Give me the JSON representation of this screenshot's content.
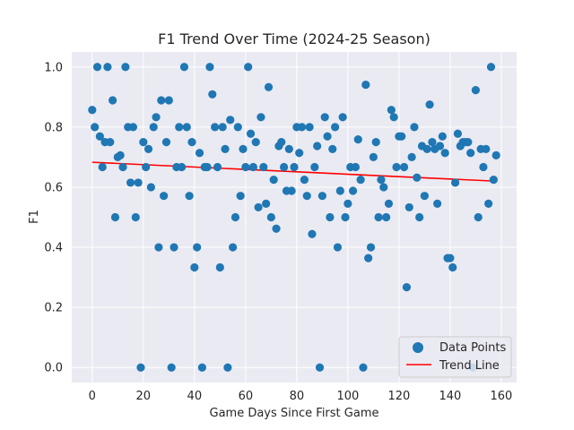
{
  "chart_data": {
    "type": "scatter",
    "title": "F1 Trend Over Time (2024-25 Season)",
    "xlabel": "Game Days Since First Game",
    "ylabel": "F1",
    "xlim": [
      -8,
      166
    ],
    "ylim": [
      -0.05,
      1.05
    ],
    "xticks": [
      0,
      20,
      40,
      60,
      80,
      100,
      120,
      140,
      160
    ],
    "yticks": [
      0.0,
      0.2,
      0.4,
      0.6,
      0.8,
      1.0
    ],
    "ytick_labels": [
      "0.0",
      "0.2",
      "0.4",
      "0.6",
      "0.8",
      "1.0"
    ],
    "grid": true,
    "legend_position": "lower-right",
    "colors": {
      "background": "#eaeaf2",
      "grid": "#ffffff",
      "points": "#1f77b4",
      "trend": "#ff0000"
    },
    "series": [
      {
        "name": "Data Points",
        "kind": "scatter",
        "points": [
          [
            0,
            0.857
          ],
          [
            1,
            0.8
          ],
          [
            2,
            1.0
          ],
          [
            3,
            0.769
          ],
          [
            4,
            0.667
          ],
          [
            5,
            0.75
          ],
          [
            6,
            1.0
          ],
          [
            7,
            0.75
          ],
          [
            8,
            0.889
          ],
          [
            9,
            0.5
          ],
          [
            10,
            0.7
          ],
          [
            11,
            0.706
          ],
          [
            12,
            0.667
          ],
          [
            13,
            1.0
          ],
          [
            14,
            0.8
          ],
          [
            15,
            0.615
          ],
          [
            16,
            0.8
          ],
          [
            17,
            0.5
          ],
          [
            18,
            0.615
          ],
          [
            19,
            0.0
          ],
          [
            20,
            0.75
          ],
          [
            21,
            0.667
          ],
          [
            22,
            0.727
          ],
          [
            23,
            0.6
          ],
          [
            24,
            0.8
          ],
          [
            25,
            0.833
          ],
          [
            26,
            0.4
          ],
          [
            27,
            0.889
          ],
          [
            28,
            0.571
          ],
          [
            29,
            0.75
          ],
          [
            30,
            0.889
          ],
          [
            31,
            0.0
          ],
          [
            32,
            0.4
          ],
          [
            33,
            0.667
          ],
          [
            34,
            0.8
          ],
          [
            35,
            0.667
          ],
          [
            36,
            1.0
          ],
          [
            37,
            0.8
          ],
          [
            38,
            0.571
          ],
          [
            39,
            0.75
          ],
          [
            40,
            0.333
          ],
          [
            41,
            0.4
          ],
          [
            42,
            0.714
          ],
          [
            43,
            0.0
          ],
          [
            44,
            0.667
          ],
          [
            45,
            0.667
          ],
          [
            46,
            1.0
          ],
          [
            47,
            0.909
          ],
          [
            48,
            0.8
          ],
          [
            49,
            0.667
          ],
          [
            50,
            0.333
          ],
          [
            51,
            0.8
          ],
          [
            52,
            0.727
          ],
          [
            53,
            0.0
          ],
          [
            54,
            0.824
          ],
          [
            55,
            0.4
          ],
          [
            56,
            0.5
          ],
          [
            57,
            0.8
          ],
          [
            58,
            0.571
          ],
          [
            59,
            0.727
          ],
          [
            60,
            0.667
          ],
          [
            61,
            1.0
          ],
          [
            62,
            0.778
          ],
          [
            63,
            0.667
          ],
          [
            64,
            0.75
          ],
          [
            65,
            0.533
          ],
          [
            66,
            0.833
          ],
          [
            67,
            0.667
          ],
          [
            68,
            0.545
          ],
          [
            69,
            0.933
          ],
          [
            70,
            0.5
          ],
          [
            71,
            0.625
          ],
          [
            72,
            0.462
          ],
          [
            73,
            0.737
          ],
          [
            74,
            0.75
          ],
          [
            75,
            0.667
          ],
          [
            76,
            0.588
          ],
          [
            77,
            0.727
          ],
          [
            78,
            0.588
          ],
          [
            79,
            0.667
          ],
          [
            80,
            0.8
          ],
          [
            81,
            0.714
          ],
          [
            82,
            0.8
          ],
          [
            83,
            0.625
          ],
          [
            84,
            0.571
          ],
          [
            85,
            0.8
          ],
          [
            86,
            0.444
          ],
          [
            87,
            0.667
          ],
          [
            88,
            0.737
          ],
          [
            89,
            0.0
          ],
          [
            90,
            0.571
          ],
          [
            91,
            0.833
          ],
          [
            92,
            0.769
          ],
          [
            93,
            0.5
          ],
          [
            94,
            0.727
          ],
          [
            95,
            0.8
          ],
          [
            96,
            0.4
          ],
          [
            97,
            0.588
          ],
          [
            98,
            0.833
          ],
          [
            99,
            0.5
          ],
          [
            100,
            0.545
          ],
          [
            101,
            0.667
          ],
          [
            102,
            0.588
          ],
          [
            103,
            0.667
          ],
          [
            104,
            0.759
          ],
          [
            105,
            0.625
          ],
          [
            106,
            0.0
          ],
          [
            107,
            0.941
          ],
          [
            108,
            0.364
          ],
          [
            109,
            0.4
          ],
          [
            110,
            0.7
          ],
          [
            111,
            0.75
          ],
          [
            112,
            0.5
          ],
          [
            113,
            0.625
          ],
          [
            114,
            0.6
          ],
          [
            115,
            0.5
          ],
          [
            116,
            0.545
          ],
          [
            117,
            0.857
          ],
          [
            118,
            0.833
          ],
          [
            119,
            0.667
          ],
          [
            120,
            0.769
          ],
          [
            121,
            0.769
          ],
          [
            122,
            0.667
          ],
          [
            123,
            0.267
          ],
          [
            124,
            0.533
          ],
          [
            125,
            0.7
          ],
          [
            126,
            0.8
          ],
          [
            127,
            0.632
          ],
          [
            128,
            0.5
          ],
          [
            129,
            0.737
          ],
          [
            130,
            0.571
          ],
          [
            131,
            0.727
          ],
          [
            132,
            0.875
          ],
          [
            133,
            0.75
          ],
          [
            134,
            0.727
          ],
          [
            135,
            0.545
          ],
          [
            136,
            0.737
          ],
          [
            137,
            0.769
          ],
          [
            138,
            0.714
          ],
          [
            139,
            0.364
          ],
          [
            140,
            0.364
          ],
          [
            141,
            0.333
          ],
          [
            142,
            0.615
          ],
          [
            143,
            0.778
          ],
          [
            144,
            0.737
          ],
          [
            145,
            0.75
          ],
          [
            146,
            0.75
          ],
          [
            147,
            0.75
          ],
          [
            148,
            0.714
          ],
          [
            149,
            0.0
          ],
          [
            150,
            0.923
          ],
          [
            151,
            0.5
          ],
          [
            152,
            0.727
          ],
          [
            153,
            0.667
          ],
          [
            154,
            0.727
          ],
          [
            155,
            0.545
          ],
          [
            156,
            1.0
          ],
          [
            157,
            0.625
          ],
          [
            158,
            0.706
          ]
        ]
      },
      {
        "name": "Trend Line",
        "kind": "line",
        "points": [
          [
            0,
            0.683
          ],
          [
            158,
            0.62
          ]
        ]
      }
    ]
  }
}
